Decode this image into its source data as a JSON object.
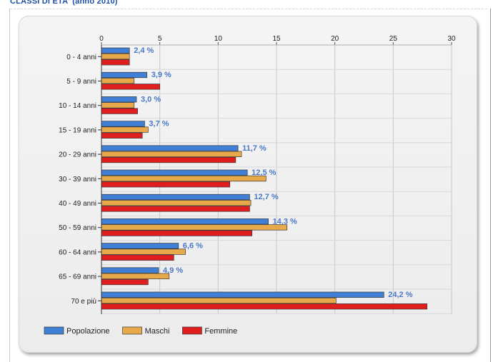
{
  "page": {
    "heading": "CLASSI DI ETA' (anno 2010)"
  },
  "chart_data": {
    "type": "bar",
    "orientation": "horizontal",
    "title": "",
    "xlabel": "",
    "ylabel": "",
    "xlim": [
      0,
      30
    ],
    "x_ticks": [
      0,
      5,
      10,
      15,
      20,
      25,
      30
    ],
    "grid": true,
    "legend_position": "bottom-left",
    "categories": [
      "0 - 4 anni",
      "5 - 9 anni",
      "10 - 14 anni",
      "15 - 19 anni",
      "20 - 29 anni",
      "30 - 39 anni",
      "40 - 49 anni",
      "50 - 59 anni",
      "60 - 64 anni",
      "65 - 69 anni",
      "70 e più"
    ],
    "series": [
      {
        "name": "Popolazione",
        "color": "#3f7fd6",
        "values": [
          2.4,
          3.9,
          3.0,
          3.7,
          11.7,
          12.5,
          12.7,
          14.3,
          6.6,
          4.9,
          24.2
        ]
      },
      {
        "name": "Maschi",
        "color": "#e8a94a",
        "values": [
          2.4,
          2.8,
          2.8,
          4.0,
          12.0,
          14.1,
          12.8,
          15.9,
          7.2,
          5.8,
          20.1
        ]
      },
      {
        "name": "Femmine",
        "color": "#e01e1e",
        "values": [
          2.4,
          5.0,
          3.1,
          3.5,
          11.5,
          11.0,
          12.7,
          12.9,
          6.2,
          4.0,
          27.9
        ]
      }
    ],
    "data_labels": [
      "2,4 %",
      "3,9 %",
      "3,0 %",
      "3,7 %",
      "11,7 %",
      "12,5 %",
      "12,7 %",
      "14,3 %",
      "6,6 %",
      "4,9 %",
      "24,2 %"
    ]
  }
}
